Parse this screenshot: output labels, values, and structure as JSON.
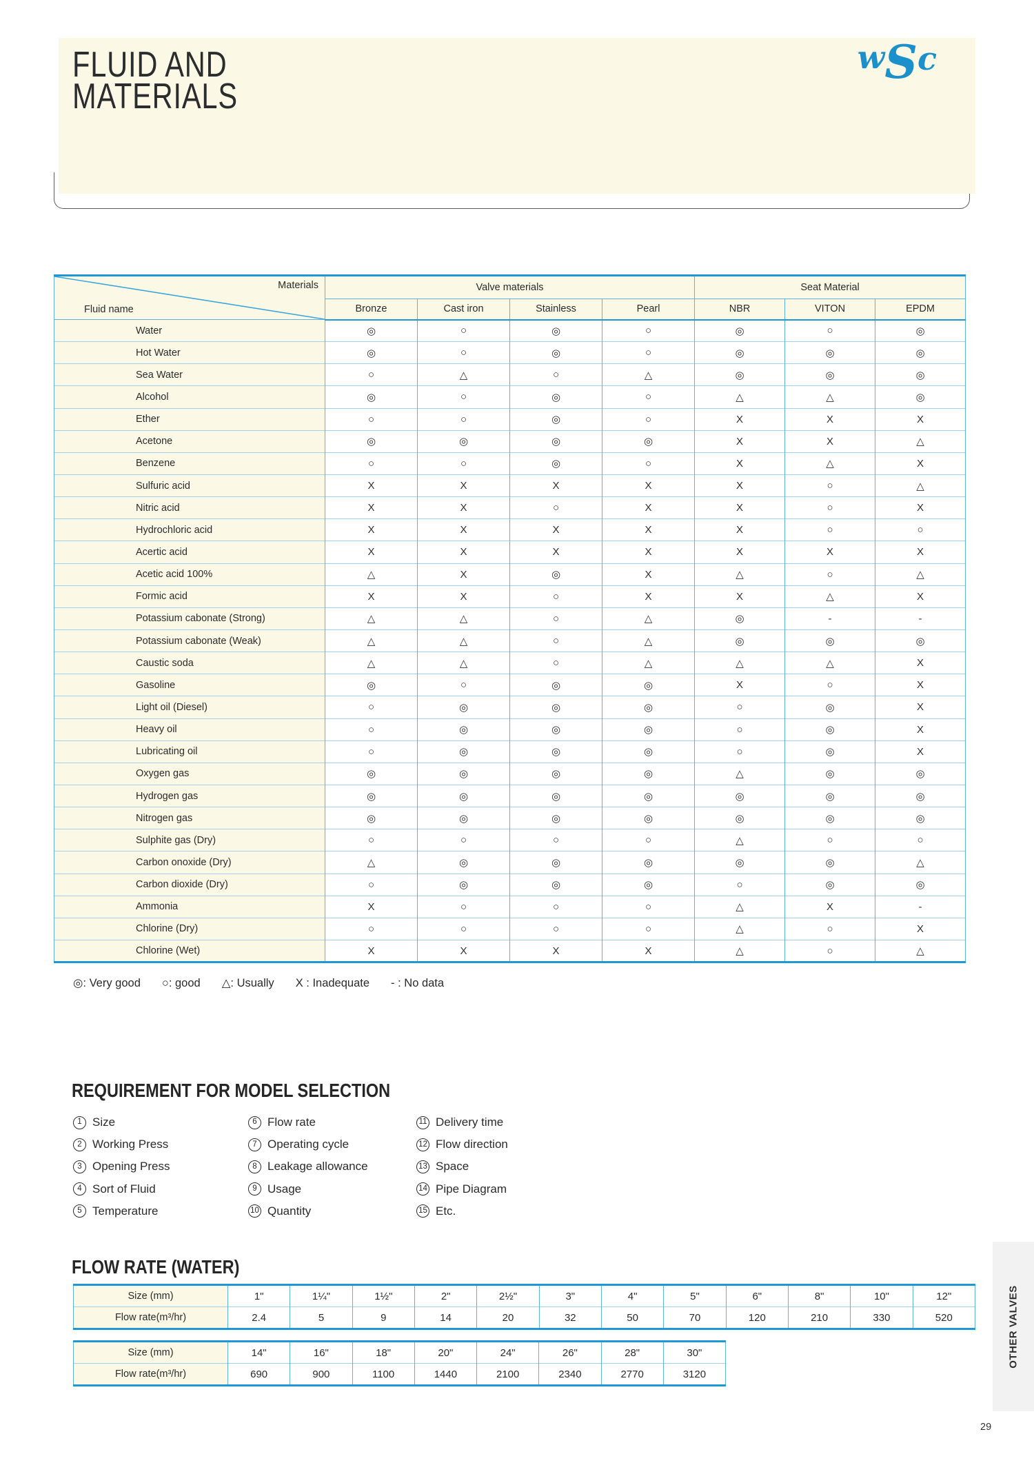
{
  "page": {
    "title_line1": "FLUID AND",
    "title_line2": "MATERIALS",
    "logo": "wSc",
    "side_tab": "OTHER VALVES",
    "page_number": "29"
  },
  "fluid_table": {
    "corner_top": "Materials",
    "corner_bottom": "Fluid name",
    "groups": [
      {
        "label": "Valve materials",
        "span": 4
      },
      {
        "label": "Seat Material",
        "span": 3
      }
    ],
    "columns": [
      "Bronze",
      "Cast iron",
      "Stainless",
      "Pearl",
      "NBR",
      "VITON",
      "EPDM"
    ],
    "rows": [
      {
        "fluid": "Water",
        "values": [
          "◎",
          "○",
          "◎",
          "○",
          "◎",
          "○",
          "◎"
        ]
      },
      {
        "fluid": "Hot Water",
        "values": [
          "◎",
          "○",
          "◎",
          "○",
          "◎",
          "◎",
          "◎"
        ]
      },
      {
        "fluid": "Sea Water",
        "values": [
          "○",
          "△",
          "○",
          "△",
          "◎",
          "◎",
          "◎"
        ]
      },
      {
        "fluid": "Alcohol",
        "values": [
          "◎",
          "○",
          "◎",
          "○",
          "△",
          "△",
          "◎"
        ]
      },
      {
        "fluid": "Ether",
        "values": [
          "○",
          "○",
          "◎",
          "○",
          "X",
          "X",
          "X"
        ]
      },
      {
        "fluid": "Acetone",
        "values": [
          "◎",
          "◎",
          "◎",
          "◎",
          "X",
          "X",
          "△"
        ]
      },
      {
        "fluid": "Benzene",
        "values": [
          "○",
          "○",
          "◎",
          "○",
          "X",
          "△",
          "X"
        ]
      },
      {
        "fluid": "Sulfuric acid",
        "values": [
          "X",
          "X",
          "X",
          "X",
          "X",
          "○",
          "△"
        ]
      },
      {
        "fluid": "Nitric acid",
        "values": [
          "X",
          "X",
          "○",
          "X",
          "X",
          "○",
          "X"
        ]
      },
      {
        "fluid": "Hydrochloric acid",
        "values": [
          "X",
          "X",
          "X",
          "X",
          "X",
          "○",
          "○"
        ]
      },
      {
        "fluid": "Acertic acid",
        "values": [
          "X",
          "X",
          "X",
          "X",
          "X",
          "X",
          "X"
        ]
      },
      {
        "fluid": "Acetic acid 100%",
        "values": [
          "△",
          "X",
          "◎",
          "X",
          "△",
          "○",
          "△"
        ]
      },
      {
        "fluid": "Formic acid",
        "values": [
          "X",
          "X",
          "○",
          "X",
          "X",
          "△",
          "X"
        ]
      },
      {
        "fluid": "Potassium cabonate (Strong)",
        "values": [
          "△",
          "△",
          "○",
          "△",
          "◎",
          "-",
          "-"
        ]
      },
      {
        "fluid": "Potassium cabonate (Weak)",
        "values": [
          "△",
          "△",
          "○",
          "△",
          "◎",
          "◎",
          "◎"
        ]
      },
      {
        "fluid": "Caustic soda",
        "values": [
          "△",
          "△",
          "○",
          "△",
          "△",
          "△",
          "X"
        ]
      },
      {
        "fluid": "Gasoline",
        "values": [
          "◎",
          "○",
          "◎",
          "◎",
          "X",
          "○",
          "X"
        ]
      },
      {
        "fluid": "Light oil (Diesel)",
        "values": [
          "○",
          "◎",
          "◎",
          "◎",
          "○",
          "◎",
          "X"
        ]
      },
      {
        "fluid": "Heavy oil",
        "values": [
          "○",
          "◎",
          "◎",
          "◎",
          "○",
          "◎",
          "X"
        ]
      },
      {
        "fluid": "Lubricating oil",
        "values": [
          "○",
          "◎",
          "◎",
          "◎",
          "○",
          "◎",
          "X"
        ]
      },
      {
        "fluid": "Oxygen gas",
        "values": [
          "◎",
          "◎",
          "◎",
          "◎",
          "△",
          "◎",
          "◎"
        ]
      },
      {
        "fluid": "Hydrogen gas",
        "values": [
          "◎",
          "◎",
          "◎",
          "◎",
          "◎",
          "◎",
          "◎"
        ]
      },
      {
        "fluid": "Nitrogen gas",
        "values": [
          "◎",
          "◎",
          "◎",
          "◎",
          "◎",
          "◎",
          "◎"
        ]
      },
      {
        "fluid": "Sulphite gas (Dry)",
        "values": [
          "○",
          "○",
          "○",
          "○",
          "△",
          "○",
          "○"
        ]
      },
      {
        "fluid": "Carbon onoxide (Dry)",
        "values": [
          "△",
          "◎",
          "◎",
          "◎",
          "◎",
          "◎",
          "△"
        ]
      },
      {
        "fluid": "Carbon dioxide (Dry)",
        "values": [
          "○",
          "◎",
          "◎",
          "◎",
          "○",
          "◎",
          "◎"
        ]
      },
      {
        "fluid": "Ammonia",
        "values": [
          "X",
          "○",
          "○",
          "○",
          "△",
          "X",
          "-"
        ]
      },
      {
        "fluid": "Chlorine (Dry)",
        "values": [
          "○",
          "○",
          "○",
          "○",
          "△",
          "○",
          "X"
        ]
      },
      {
        "fluid": "Chlorine (Wet)",
        "values": [
          "X",
          "X",
          "X",
          "X",
          "△",
          "○",
          "△"
        ]
      }
    ],
    "legend": [
      "◎: Very good",
      "○: good",
      "△: Usually",
      "X : Inadequate",
      "- : No data"
    ]
  },
  "requirements": {
    "heading": "REQUIREMENT FOR MODEL SELECTION",
    "columns": [
      [
        {
          "num": "1",
          "label": "Size"
        },
        {
          "num": "2",
          "label": "Working Press"
        },
        {
          "num": "3",
          "label": "Opening Press"
        },
        {
          "num": "4",
          "label": "Sort of Fluid"
        },
        {
          "num": "5",
          "label": "Temperature"
        }
      ],
      [
        {
          "num": "6",
          "label": "Flow rate"
        },
        {
          "num": "7",
          "label": "Operating cycle"
        },
        {
          "num": "8",
          "label": "Leakage allowance"
        },
        {
          "num": "9",
          "label": "Usage"
        },
        {
          "num": "10",
          "label": "Quantity"
        }
      ],
      [
        {
          "num": "11",
          "label": "Delivery time"
        },
        {
          "num": "12",
          "label": "Flow direction"
        },
        {
          "num": "13",
          "label": "Space"
        },
        {
          "num": "14",
          "label": "Pipe Diagram"
        },
        {
          "num": "15",
          "label": "Etc."
        }
      ]
    ]
  },
  "flow_rate": {
    "heading": "FLOW RATE (WATER)",
    "size_label": "Size (mm)",
    "rate_label": "Flow rate(m³/hr)",
    "tables": [
      {
        "sizes": [
          "1\"",
          "1¼\"",
          "1½\"",
          "2\"",
          "2½\"",
          "3\"",
          "4\"",
          "5\"",
          "6\"",
          "8\"",
          "10\"",
          "12\""
        ],
        "rates": [
          "2.4",
          "5",
          "9",
          "14",
          "20",
          "32",
          "50",
          "70",
          "120",
          "210",
          "330",
          "520"
        ]
      },
      {
        "sizes": [
          "14\"",
          "16\"",
          "18\"",
          "20\"",
          "24\"",
          "26\"",
          "28\"",
          "30\""
        ],
        "rates": [
          "690",
          "900",
          "1100",
          "1440",
          "2100",
          "2340",
          "2770",
          "3120"
        ]
      }
    ]
  },
  "colors": {
    "accent_blue": "#1E98D3",
    "grid_blue": "#5FB2DE",
    "cream": "#FBF8E6",
    "logo_blue": "#1B90CA"
  }
}
